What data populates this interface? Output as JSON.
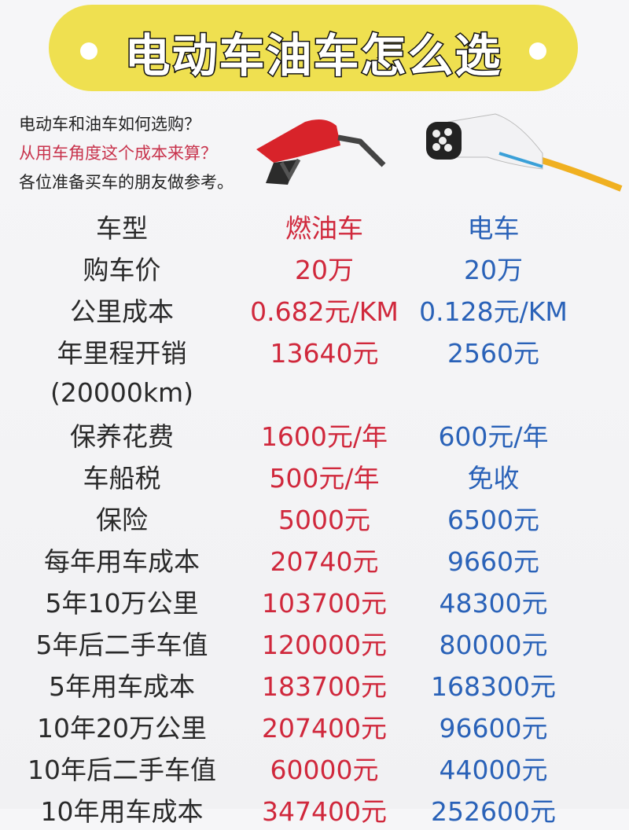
{
  "title": "电动车油车怎么选",
  "intro": [
    "电动车和油车如何选购？",
    "从用车角度这个成本来算？",
    "各位准备买车的朋友做参考。"
  ],
  "colors": {
    "banner": "#efe050",
    "oil": "#d0283c",
    "ev": "#2a62b8"
  },
  "images": [
    "fuel-nozzle",
    "ev-charger-plug"
  ],
  "table": {
    "headers": [
      "车型",
      "燃油车",
      "电车"
    ],
    "rows": [
      [
        "购车价",
        "20万",
        "20万"
      ],
      [
        "公里成本",
        "0.682元/KM",
        "0.128元/KM"
      ],
      [
        "年里程开销",
        "13640元",
        "2560元"
      ],
      [
        "(20000km)",
        "",
        ""
      ],
      [
        "保养花费",
        "1600元/年",
        "600元/年"
      ],
      [
        "车船税",
        "500元/年",
        "免收"
      ],
      [
        "保险",
        "5000元",
        "6500元"
      ],
      [
        "每年用车成本",
        "20740元",
        "9660元"
      ],
      [
        "5年10万公里",
        "103700元",
        "48300元"
      ],
      [
        "5年后二手车值",
        "120000元",
        "80000元"
      ],
      [
        "5年用车成本",
        "183700元",
        "168300元"
      ],
      [
        "10年20万公里",
        "207400元",
        "96600元"
      ],
      [
        "10年后二手车值",
        "60000元",
        "44000元"
      ],
      [
        "10年用车成本",
        "347400元",
        "252600元"
      ]
    ]
  }
}
